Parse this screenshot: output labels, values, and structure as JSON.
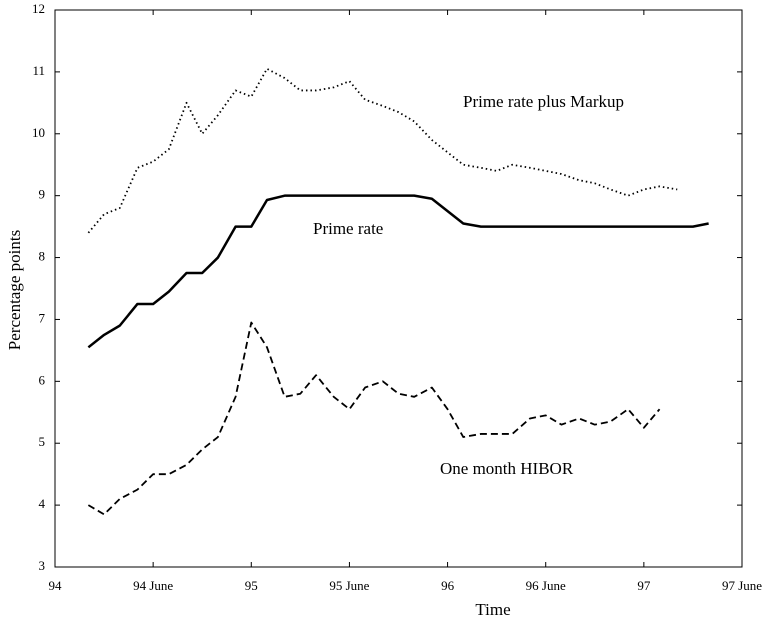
{
  "chart_data": {
    "type": "line",
    "x_label": "Time",
    "y_label": "Percentage points",
    "x": [
      1994.17,
      1994.25,
      1994.33,
      1994.42,
      1994.5,
      1994.58,
      1994.67,
      1994.75,
      1994.83,
      1994.92,
      1995.0,
      1995.08,
      1995.17,
      1995.25,
      1995.33,
      1995.42,
      1995.5,
      1995.58,
      1995.67,
      1995.75,
      1995.83,
      1995.92,
      1996.0,
      1996.08,
      1996.17,
      1996.25,
      1996.33,
      1996.42,
      1996.5,
      1996.58,
      1996.67,
      1996.75,
      1996.83,
      1996.92,
      1997.0,
      1997.08,
      1997.17,
      1997.25,
      1997.33
    ],
    "series": [
      {
        "name": "Prime rate plus Markup",
        "color": "#000000",
        "style": "dotted",
        "values": [
          8.4,
          8.7,
          8.8,
          9.45,
          9.55,
          9.75,
          10.5,
          10.0,
          10.3,
          10.7,
          10.6,
          11.05,
          10.9,
          10.7,
          10.7,
          10.75,
          10.85,
          10.55,
          10.45,
          10.35,
          10.2,
          9.9,
          9.7,
          9.5,
          9.45,
          9.4,
          9.5,
          9.45,
          9.4,
          9.35,
          9.25,
          9.2,
          9.1,
          9.0,
          9.1,
          9.15,
          9.1,
          null,
          null
        ]
      },
      {
        "name": "Prime rate",
        "color": "#000000",
        "style": "solid",
        "values": [
          6.55,
          6.75,
          6.9,
          7.25,
          7.25,
          7.45,
          7.75,
          7.75,
          8.0,
          8.5,
          8.5,
          8.93,
          9.0,
          9.0,
          9.0,
          9.0,
          9.0,
          9.0,
          9.0,
          9.0,
          9.0,
          8.95,
          8.75,
          8.55,
          8.5,
          8.5,
          8.5,
          8.5,
          8.5,
          8.5,
          8.5,
          8.5,
          8.5,
          8.5,
          8.5,
          8.5,
          8.5,
          8.5,
          8.55
        ]
      },
      {
        "name": "One month HIBOR",
        "color": "#000000",
        "style": "dashed",
        "values": [
          4.0,
          3.85,
          4.1,
          4.25,
          4.5,
          4.5,
          4.65,
          4.9,
          5.1,
          5.75,
          6.95,
          6.55,
          5.75,
          5.8,
          6.1,
          5.75,
          5.55,
          5.9,
          6.0,
          5.8,
          5.75,
          5.9,
          5.55,
          5.1,
          5.15,
          5.15,
          5.15,
          5.4,
          5.45,
          5.3,
          5.4,
          5.3,
          5.35,
          5.55,
          5.25,
          5.55,
          null,
          null,
          null
        ]
      }
    ],
    "xlim": [
      1994,
      1997.5
    ],
    "xticks": [
      {
        "value": 1994,
        "label": "94"
      },
      {
        "value": 1994.5,
        "label": "94 June"
      },
      {
        "value": 1995,
        "label": "95"
      },
      {
        "value": 1995.5,
        "label": "95 June"
      },
      {
        "value": 1996,
        "label": "96"
      },
      {
        "value": 1996.5,
        "label": "96 June"
      },
      {
        "value": 1997,
        "label": "97"
      },
      {
        "value": 1997.5,
        "label": "97 June"
      }
    ],
    "ylim": [
      3,
      12
    ],
    "yticks": [
      3,
      4,
      5,
      6,
      7,
      8,
      9,
      10,
      11,
      12
    ]
  }
}
